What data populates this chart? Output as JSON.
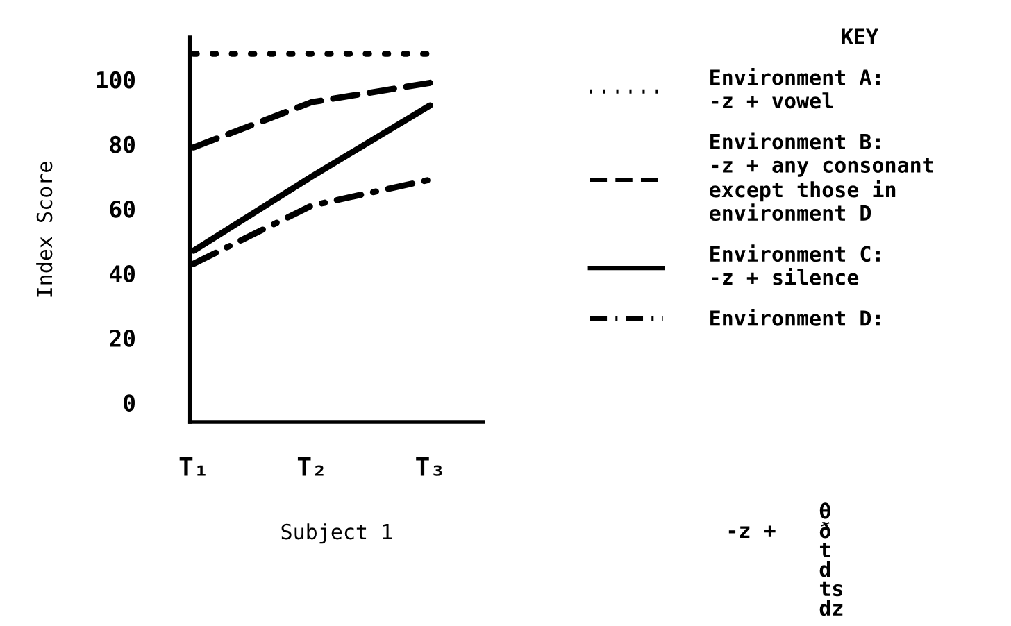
{
  "chart_data": {
    "type": "line",
    "xlabel": "Subject 1",
    "ylabel": "Index Score",
    "legend_title": "KEY",
    "categories": [
      "T₁",
      "T₂",
      "T₃"
    ],
    "series": [
      {
        "name": "Environment A:\n-z + vowel",
        "color": "#000000",
        "line_style": "dotted",
        "values": [
          108,
          108,
          108
        ]
      },
      {
        "name": "Environment B:\n-z + any consonant\nexcept those in\nenvironment D",
        "color": "#000000",
        "line_style": "dashed",
        "values": [
          79,
          93,
          99
        ]
      },
      {
        "name": "Environment C:\n-z + silence",
        "color": "#000000",
        "line_style": "solid",
        "values": [
          47,
          70,
          92
        ]
      },
      {
        "name": "Environment D:",
        "color": "#000000",
        "line_style": "dashdot",
        "values": [
          43,
          61,
          69
        ]
      }
    ],
    "annotations": [
      "-z +",
      "θ\nð\nt\nd\nts\ndz"
    ],
    "ylim": [
      -6,
      113
    ],
    "yticks": [
      0,
      20,
      40,
      60,
      80,
      100
    ],
    "grid": false,
    "legend": "right",
    "marker": "none"
  }
}
